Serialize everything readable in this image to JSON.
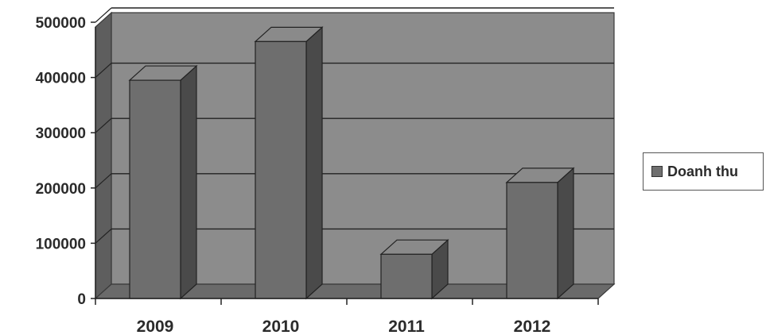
{
  "chart_data": {
    "type": "bar",
    "categories": [
      "2009",
      "2010",
      "2011",
      "2012"
    ],
    "series": [
      {
        "name": "Doanh thu",
        "values": [
          395000,
          465000,
          80000,
          210000
        ]
      }
    ],
    "y_ticks": [
      "0",
      "100000",
      "200000",
      "300000",
      "400000",
      "500000"
    ],
    "ylim": [
      0,
      500000
    ],
    "grid": true,
    "legend_position": "right",
    "colors": {
      "bar_front": "#6e6e6e",
      "bar_side": "#4a4a4a",
      "bar_top": "#8a8a8a",
      "wall": "#8c8c8c",
      "floor": "#6a6a6a"
    }
  }
}
